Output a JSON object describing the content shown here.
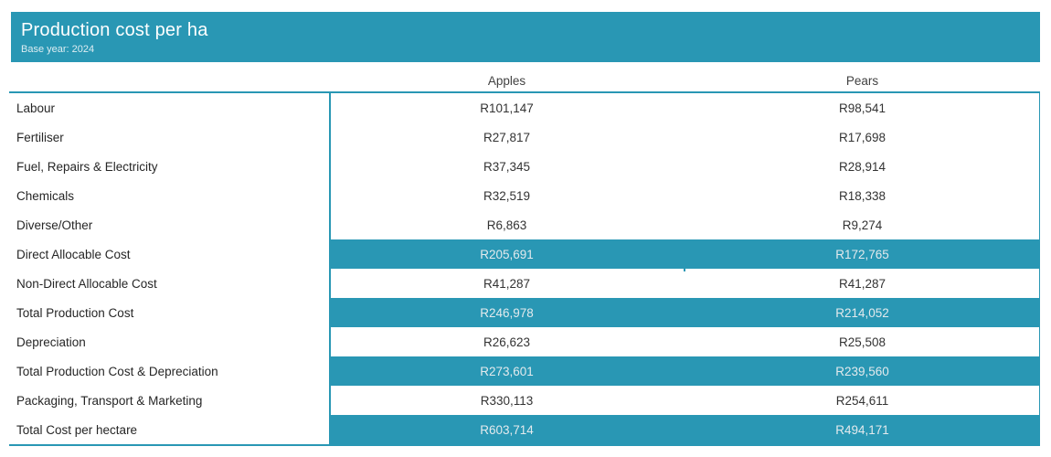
{
  "title_bar": {
    "title": "Production cost per ha",
    "subtitle": "Base year: 2024"
  },
  "colors": {
    "accent": "#2997b4",
    "background": "#ffffff",
    "band_text": "#e3eaed",
    "value_text": "#333333",
    "label_text": "#262626",
    "header_text": "#424242"
  },
  "table": {
    "columns": [
      "Apples",
      "Pears"
    ],
    "rows": [
      {
        "label": "Labour",
        "values": [
          "R101,147",
          "R98,541"
        ],
        "highlight": false
      },
      {
        "label": "Fertiliser",
        "values": [
          "R27,817",
          "R17,698"
        ],
        "highlight": false
      },
      {
        "label": "Fuel, Repairs & Electricity",
        "values": [
          "R37,345",
          "R28,914"
        ],
        "highlight": false
      },
      {
        "label": "Chemicals",
        "values": [
          "R32,519",
          "R18,338"
        ],
        "highlight": false
      },
      {
        "label": "Diverse/Other",
        "values": [
          "R6,863",
          "R9,274"
        ],
        "highlight": false
      },
      {
        "label": "Direct Allocable Cost",
        "values": [
          "R205,691",
          "R172,765"
        ],
        "highlight": true
      },
      {
        "label": "Non-Direct Allocable Cost",
        "values": [
          "R41,287",
          "R41,287"
        ],
        "highlight": false
      },
      {
        "label": "Total Production Cost",
        "values": [
          "R246,978",
          "R214,052"
        ],
        "highlight": true
      },
      {
        "label": "Depreciation",
        "values": [
          "R26,623",
          "R25,508"
        ],
        "highlight": false
      },
      {
        "label": "Total Production Cost & Depreciation",
        "values": [
          "R273,601",
          "R239,560"
        ],
        "highlight": true
      },
      {
        "label": "Packaging, Transport & Marketing",
        "values": [
          "R330,113",
          "R254,611"
        ],
        "highlight": false
      },
      {
        "label": "Total Cost per hectare",
        "values": [
          "R603,714",
          "R494,171"
        ],
        "highlight": true
      }
    ]
  },
  "chart_data": {
    "type": "table",
    "title": "Production cost per ha",
    "subtitle": "Base year: 2024",
    "currency": "ZAR (R)",
    "categories": [
      "Labour",
      "Fertiliser",
      "Fuel, Repairs & Electricity",
      "Chemicals",
      "Diverse/Other",
      "Direct Allocable Cost",
      "Non-Direct Allocable Cost",
      "Total Production Cost",
      "Depreciation",
      "Total Production Cost & Depreciation",
      "Packaging, Transport & Marketing",
      "Total Cost per hectare"
    ],
    "series": [
      {
        "name": "Apples",
        "values": [
          101147,
          27817,
          37345,
          32519,
          6863,
          205691,
          41287,
          246978,
          26623,
          273601,
          330113,
          603714
        ]
      },
      {
        "name": "Pears",
        "values": [
          98541,
          17698,
          28914,
          18338,
          9274,
          172765,
          41287,
          214052,
          25508,
          239560,
          254611,
          494171
        ]
      }
    ],
    "highlighted_rows": [
      "Direct Allocable Cost",
      "Total Production Cost",
      "Total Production Cost & Depreciation",
      "Total Cost per hectare"
    ]
  }
}
